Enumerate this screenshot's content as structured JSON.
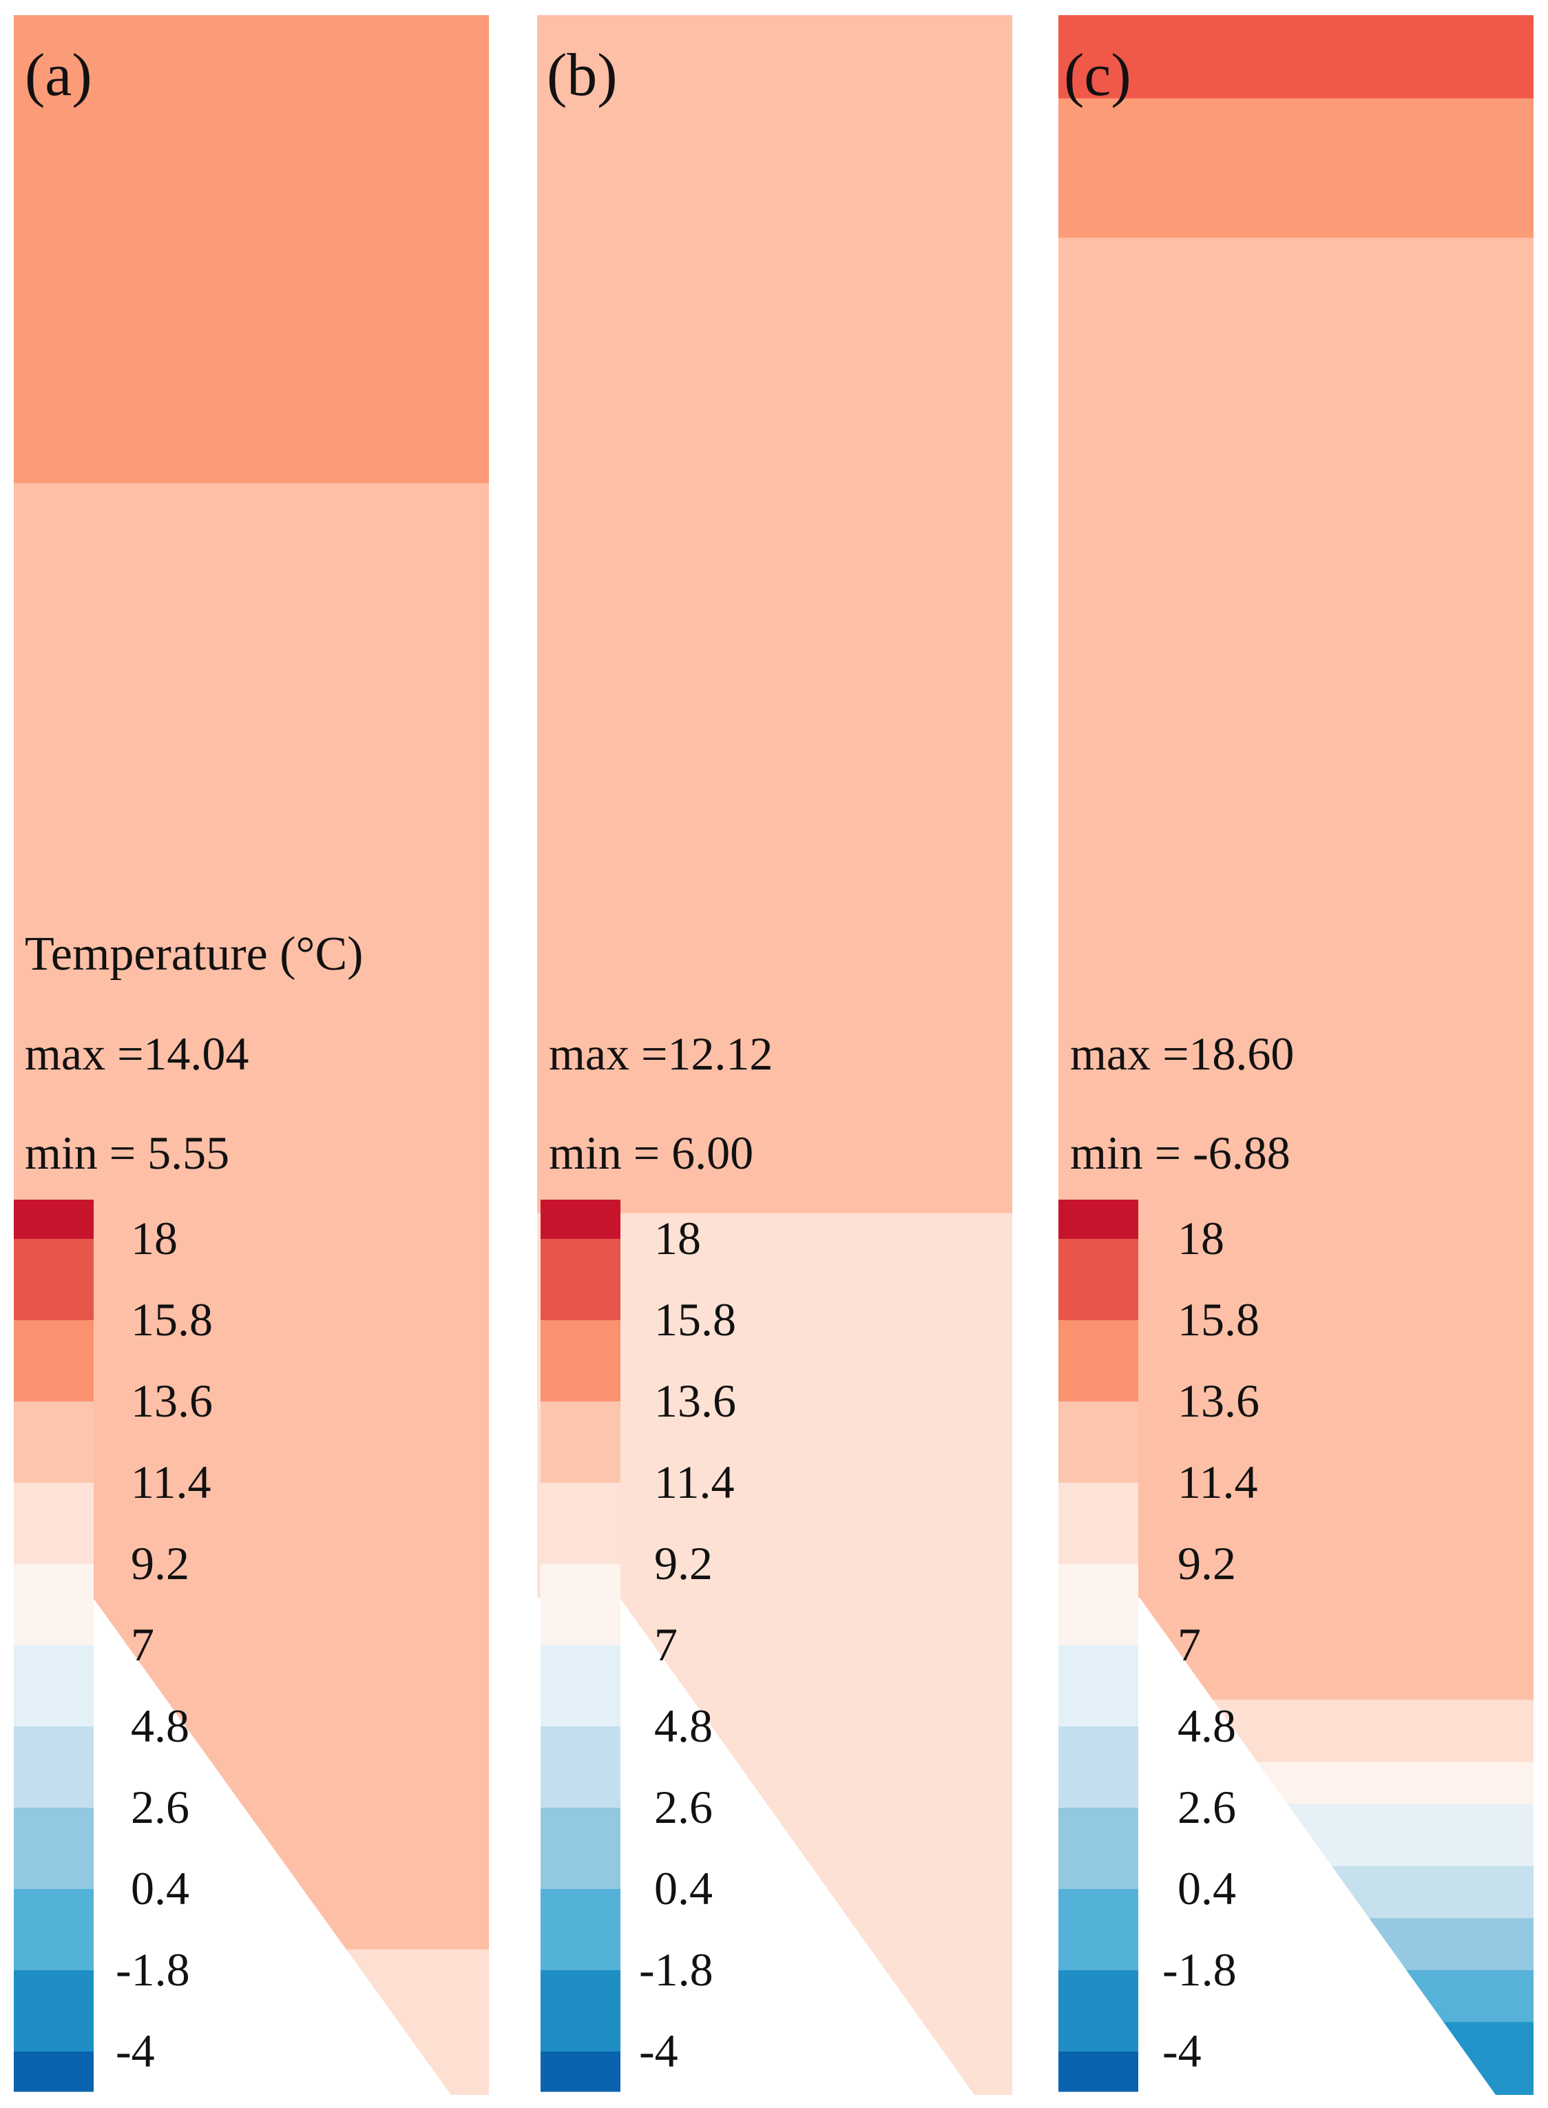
{
  "legend": {
    "title": "Temperature (°C)",
    "levels": [
      "18",
      "15.8",
      "13.6",
      "11.4",
      "9.2",
      "7",
      "4.8",
      "2.6",
      "0.4",
      "-1.8",
      "-4"
    ],
    "colors": [
      "#c7142c",
      "#e8554a",
      "#fa9270",
      "#fcc5ad",
      "#fde3d7",
      "#fdf3ef",
      "#e4f0f7",
      "#c3dfee",
      "#93c8e1",
      "#54b2d8",
      "#1f8ec5",
      "#0a63ae"
    ]
  },
  "panels": [
    {
      "label": "(a)",
      "max_text": "max =14.04",
      "min_text": "min = 5.55",
      "temperature_bands": [
        {
          "from_fraction": 0.0,
          "to_fraction": 0.225,
          "level_color": "#fc9b78"
        },
        {
          "from_fraction": 0.225,
          "to_fraction": 0.93,
          "level_color": "#fdbfa6"
        },
        {
          "from_fraction": 0.93,
          "to_fraction": 1.0,
          "level_color": "#fde0d2"
        }
      ]
    },
    {
      "label": "(b)",
      "max_text": "max =12.12",
      "min_text": "min = 6.00",
      "temperature_bands": [
        {
          "from_fraction": 0.0,
          "to_fraction": 0.576,
          "level_color": "#fdbfa6"
        },
        {
          "from_fraction": 0.576,
          "to_fraction": 1.0,
          "level_color": "#fde1d4"
        }
      ]
    },
    {
      "label": "(c)",
      "max_text": "max =18.60",
      "min_text": "min = -6.88",
      "temperature_bands": [
        {
          "from_fraction": 0.0,
          "to_fraction": 0.04,
          "level_color": "#f0584a"
        },
        {
          "from_fraction": 0.04,
          "to_fraction": 0.107,
          "level_color": "#fc9b78"
        },
        {
          "from_fraction": 0.107,
          "to_fraction": 0.81,
          "level_color": "#fdbfa6"
        },
        {
          "from_fraction": 0.81,
          "to_fraction": 0.84,
          "level_color": "#fde0d2"
        },
        {
          "from_fraction": 0.84,
          "to_fraction": 0.86,
          "level_color": "#fdf2ec"
        },
        {
          "from_fraction": 0.86,
          "to_fraction": 0.89,
          "level_color": "#e6f1f7"
        },
        {
          "from_fraction": 0.89,
          "to_fraction": 0.915,
          "level_color": "#c6e0ee"
        },
        {
          "from_fraction": 0.915,
          "to_fraction": 0.94,
          "level_color": "#95c9e1"
        },
        {
          "from_fraction": 0.94,
          "to_fraction": 0.965,
          "level_color": "#56b2d8"
        },
        {
          "from_fraction": 0.965,
          "to_fraction": 1.0,
          "level_color": "#2294c9"
        }
      ]
    }
  ]
}
